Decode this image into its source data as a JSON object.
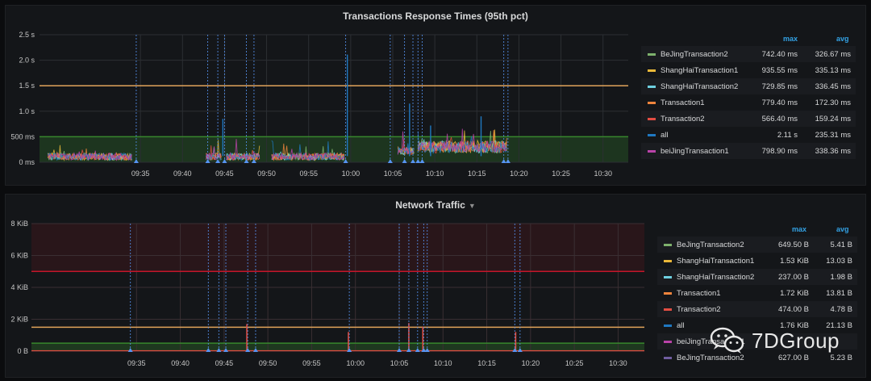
{
  "chart_data": [
    {
      "type": "line",
      "title": "Transactions Response Times (95th pct)",
      "y_tick_labels": [
        "0 ms",
        "500 ms",
        "1.0 s",
        "1.5 s",
        "2.0 s",
        "2.5 s"
      ],
      "y_ticks_ms": [
        0,
        500,
        1000,
        1500,
        2000,
        2500
      ],
      "ylim_ms": [
        0,
        2500
      ],
      "x_tick_labels": [
        "09:35",
        "09:40",
        "09:45",
        "09:50",
        "09:55",
        "10:00",
        "10:05",
        "10:10",
        "10:15",
        "10:20",
        "10:25",
        "10:30"
      ],
      "x_range_min": [
        -7,
        63
      ],
      "x_unit": "minutes after 09:30",
      "thresholds": [
        {
          "value_ms": 500,
          "color": "#37872d",
          "fill": true
        },
        {
          "value_ms": 1500,
          "color": "#e0a35a",
          "fill": false
        }
      ],
      "segments": [
        [
          -6,
          4
        ],
        [
          12.8,
          14.7
        ],
        [
          15.2,
          19.2
        ],
        [
          20.6,
          29.3
        ],
        [
          35.6,
          37.6
        ],
        [
          38,
          48.6
        ]
      ],
      "annotations_min": [
        4.5,
        13,
        14.2,
        15,
        17.6,
        18.5,
        29.4,
        34.7,
        36.4,
        37.4,
        38,
        38.5,
        48.2,
        48.7
      ],
      "legend_headers": {
        "max": "max",
        "avg": "avg"
      },
      "series": [
        {
          "name": "BeJingTransaction2",
          "color": "#7eb26d",
          "max": "742.40 ms",
          "avg": "326.67 ms"
        },
        {
          "name": "ShangHaiTransaction1",
          "color": "#eab839",
          "max": "935.55 ms",
          "avg": "335.13 ms"
        },
        {
          "name": "ShangHaiTransaction2",
          "color": "#6ed0e0",
          "max": "729.85 ms",
          "avg": "336.45 ms"
        },
        {
          "name": "Transaction1",
          "color": "#ef843c",
          "max": "779.40 ms",
          "avg": "172.30 ms"
        },
        {
          "name": "Transaction2",
          "color": "#e24d42",
          "max": "566.40 ms",
          "avg": "159.24 ms"
        },
        {
          "name": "all",
          "color": "#1f78c1",
          "max": "2.11 s",
          "avg": "235.31 ms"
        },
        {
          "name": "beiJingTransaction1",
          "color": "#ba43a9",
          "max": "798.90 ms",
          "avg": "338.36 ms"
        }
      ]
    },
    {
      "type": "line",
      "title": "Network Traffic",
      "y_tick_labels": [
        "0 B",
        "2 KiB",
        "4 KiB",
        "6 KiB",
        "8 KiB"
      ],
      "y_ticks_kib": [
        0,
        2,
        4,
        6,
        8
      ],
      "ylim_kib": [
        0,
        8
      ],
      "x_tick_labels": [
        "09:35",
        "09:40",
        "09:45",
        "09:50",
        "09:55",
        "10:00",
        "10:05",
        "10:10",
        "10:15",
        "10:20",
        "10:25",
        "10:30"
      ],
      "x_range_min": [
        -7,
        63
      ],
      "x_unit": "minutes after 09:30",
      "thresholds": [
        {
          "value_kib": 0.5,
          "color": "#37872d",
          "fill": true
        },
        {
          "value_kib": 1.5,
          "color": "#e0a35a",
          "fill": false
        },
        {
          "value_kib": 5,
          "color": "#c4162a",
          "fill": false
        }
      ],
      "annotations_min": [
        4.3,
        13.2,
        14.4,
        15.2,
        17.7,
        18.6,
        29.3,
        35,
        36.1,
        37.1,
        37.8,
        38.2,
        48.2,
        48.8
      ],
      "spikes_min": [
        17.6,
        29.2,
        36.1,
        37.7,
        48.3
      ],
      "legend_headers": {
        "max": "max",
        "avg": "avg"
      },
      "series": [
        {
          "name": "BeJingTransaction2",
          "color": "#7eb26d",
          "max": "649.50 B",
          "avg": "5.41 B"
        },
        {
          "name": "ShangHaiTransaction1",
          "color": "#eab839",
          "max": "1.53 KiB",
          "avg": "13.03 B"
        },
        {
          "name": "ShangHaiTransaction2",
          "color": "#6ed0e0",
          "max": "237.00 B",
          "avg": "1.98 B"
        },
        {
          "name": "Transaction1",
          "color": "#ef843c",
          "max": "1.72 KiB",
          "avg": "13.81 B"
        },
        {
          "name": "Transaction2",
          "color": "#e24d42",
          "max": "474.00 B",
          "avg": "4.78 B"
        },
        {
          "name": "all",
          "color": "#1f78c1",
          "max": "1.76 KiB",
          "avg": "21.13 B"
        },
        {
          "name": "beiJingTransaction1",
          "color": "#ba43a9",
          "max": "",
          "avg": ""
        },
        {
          "name": "BeJingTransaction2",
          "color": "#705da0",
          "max": "627.00 B",
          "avg": "5.23 B"
        }
      ]
    }
  ],
  "watermark": {
    "text": "7DGroup"
  }
}
